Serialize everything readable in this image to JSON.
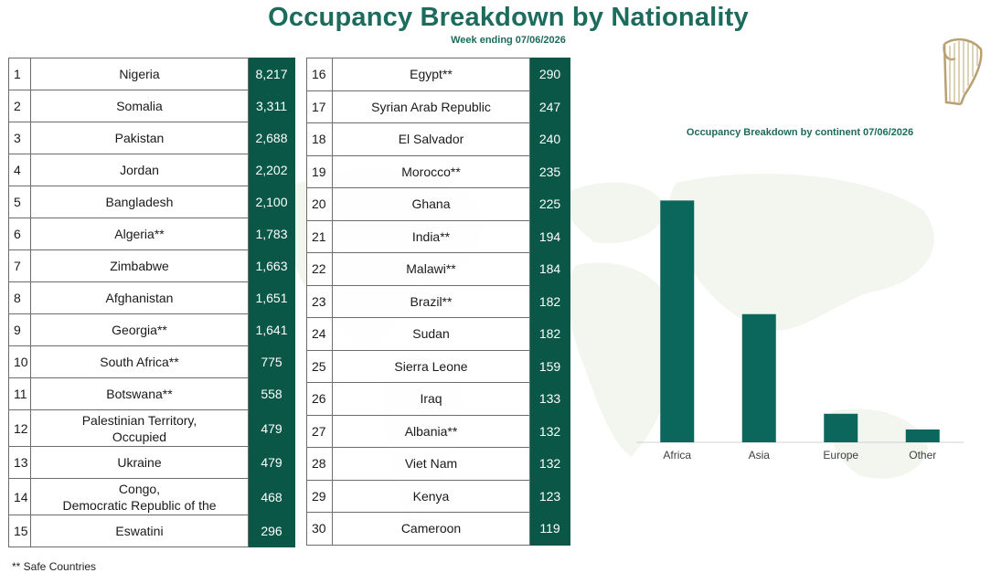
{
  "header": {
    "title": "Occupancy Breakdown by Nationality",
    "subtitle": "Week ending 07/06/2026"
  },
  "table_left": [
    {
      "rank": "1",
      "country": "Nigeria",
      "value": "8,217"
    },
    {
      "rank": "2",
      "country": "Somalia",
      "value": "3,311"
    },
    {
      "rank": "3",
      "country": "Pakistan",
      "value": "2,688"
    },
    {
      "rank": "4",
      "country": "Jordan",
      "value": "2,202"
    },
    {
      "rank": "5",
      "country": "Bangladesh",
      "value": "2,100"
    },
    {
      "rank": "6",
      "country": "Algeria**",
      "value": "1,783"
    },
    {
      "rank": "7",
      "country": "Zimbabwe",
      "value": "1,663"
    },
    {
      "rank": "8",
      "country": "Afghanistan",
      "value": "1,651"
    },
    {
      "rank": "9",
      "country": "Georgia**",
      "value": "1,641"
    },
    {
      "rank": "10",
      "country": "South Africa**",
      "value": "775"
    },
    {
      "rank": "11",
      "country": "Botswana**",
      "value": "558"
    },
    {
      "rank": "12",
      "country": "Palestinian Territory,\nOccupied",
      "value": "479"
    },
    {
      "rank": "13",
      "country": "Ukraine",
      "value": "479"
    },
    {
      "rank": "14",
      "country": "Congo,\nDemocratic Republic of the",
      "value": "468"
    },
    {
      "rank": "15",
      "country": "Eswatini",
      "value": "296"
    }
  ],
  "table_right": [
    {
      "rank": "16",
      "country": "Egypt**",
      "value": "290"
    },
    {
      "rank": "17",
      "country": "Syrian Arab Republic",
      "value": "247"
    },
    {
      "rank": "18",
      "country": "El Salvador",
      "value": "240"
    },
    {
      "rank": "19",
      "country": "Morocco**",
      "value": "235"
    },
    {
      "rank": "20",
      "country": "Ghana",
      "value": "225"
    },
    {
      "rank": "21",
      "country": "India**",
      "value": "194"
    },
    {
      "rank": "22",
      "country": "Malawi**",
      "value": "184"
    },
    {
      "rank": "23",
      "country": "Brazil**",
      "value": "182"
    },
    {
      "rank": "24",
      "country": "Sudan",
      "value": "182"
    },
    {
      "rank": "25",
      "country": "Sierra Leone",
      "value": "159"
    },
    {
      "rank": "26",
      "country": "Iraq",
      "value": "133"
    },
    {
      "rank": "27",
      "country": "Albania**",
      "value": "132"
    },
    {
      "rank": "28",
      "country": "Viet Nam",
      "value": "132"
    },
    {
      "rank": "29",
      "country": "Kenya",
      "value": "123"
    },
    {
      "rank": "30",
      "country": "Cameroon",
      "value": "119"
    }
  ],
  "footnote": "** Safe Countries",
  "colors": {
    "accent": "#0a5748",
    "title": "#1d6b5c",
    "bar": "#0b665c"
  },
  "icons": {
    "crest": "harp-icon"
  },
  "chart_data": {
    "type": "bar",
    "title": "Occupancy Breakdown by continent 07/06/2026",
    "categories": [
      "Africa",
      "Asia",
      "Europe",
      "Other"
    ],
    "values": [
      21600,
      11450,
      2550,
      1150
    ],
    "xlabel": "",
    "ylabel": "",
    "ylim": [
      0,
      24000
    ],
    "grid": false,
    "legend": "none"
  }
}
